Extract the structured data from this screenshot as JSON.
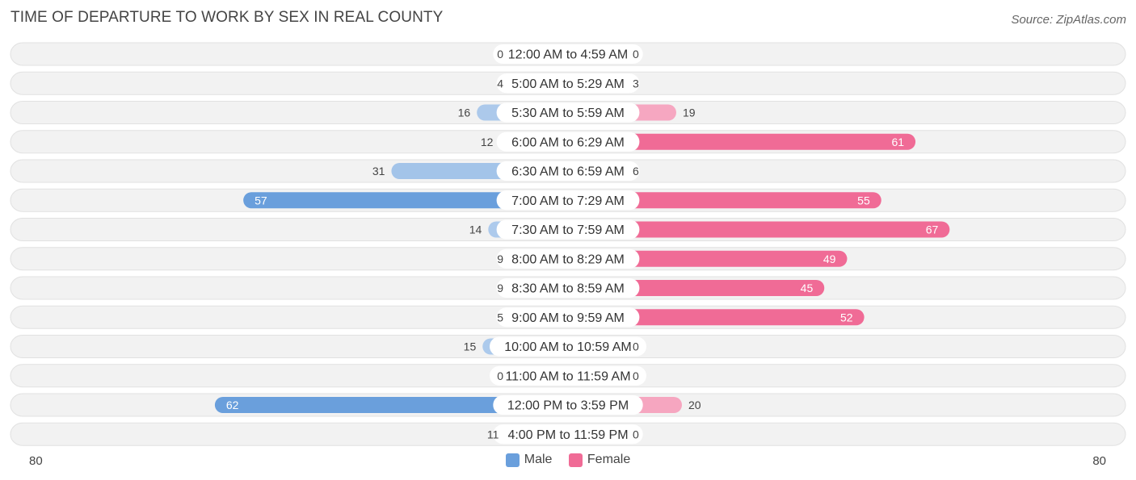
{
  "chart_data": {
    "type": "bar",
    "orientation": "horizontal-diverging",
    "title": "TIME OF DEPARTURE TO WORK BY SEX IN REAL COUNTY",
    "source": "Source: ZipAtlas.com",
    "categories": [
      "12:00 AM to 4:59 AM",
      "5:00 AM to 5:29 AM",
      "5:30 AM to 5:59 AM",
      "6:00 AM to 6:29 AM",
      "6:30 AM to 6:59 AM",
      "7:00 AM to 7:29 AM",
      "7:30 AM to 7:59 AM",
      "8:00 AM to 8:29 AM",
      "8:30 AM to 8:59 AM",
      "9:00 AM to 9:59 AM",
      "10:00 AM to 10:59 AM",
      "11:00 AM to 11:59 AM",
      "12:00 PM to 3:59 PM",
      "4:00 PM to 11:59 PM"
    ],
    "series": [
      {
        "name": "Male",
        "color": "#6a9fdc",
        "values": [
          0,
          4,
          16,
          12,
          31,
          57,
          14,
          9,
          9,
          5,
          15,
          0,
          62,
          11
        ]
      },
      {
        "name": "Female",
        "color": "#f06b96",
        "values": [
          0,
          3,
          19,
          61,
          6,
          55,
          67,
          49,
          45,
          52,
          0,
          0,
          20,
          0
        ]
      }
    ],
    "xlim": [
      -80,
      80
    ],
    "axis_labels": {
      "left": "80",
      "right": "80"
    },
    "legend_position": "bottom-center"
  }
}
